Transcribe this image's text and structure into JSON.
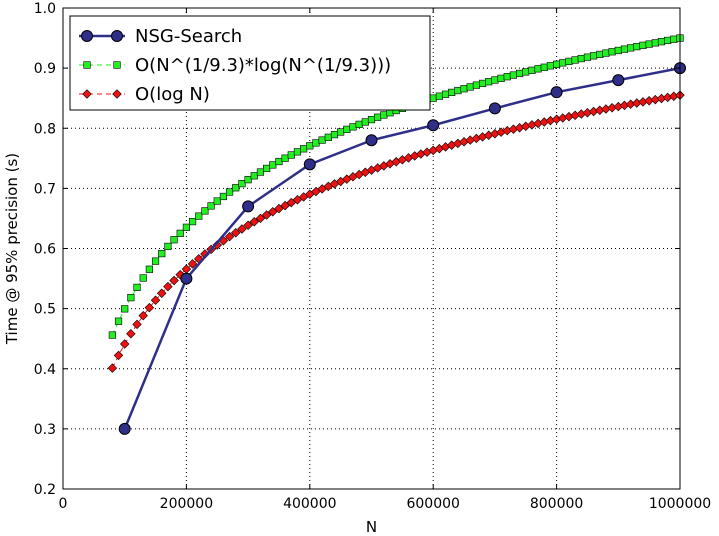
{
  "chart_data": {
    "type": "line",
    "title": "",
    "xlabel": "N",
    "ylabel": "Time @ 95% precision (s)",
    "xlim": [
      0,
      1000000
    ],
    "ylim": [
      0.2,
      1.0
    ],
    "xticks": [
      "0",
      "200000",
      "400000",
      "600000",
      "800000",
      "1000000"
    ],
    "yticks": [
      "0.2",
      "0.3",
      "0.4",
      "0.5",
      "0.6",
      "0.7",
      "0.8",
      "0.9",
      "1.0"
    ],
    "grid": true,
    "legend_position": "top-left",
    "series": [
      {
        "name": "NSG-Search",
        "color": "#2f2f8a",
        "marker": "circle",
        "linestyle": "solid",
        "x": [
          100000,
          200000,
          300000,
          400000,
          500000,
          600000,
          700000,
          800000,
          900000,
          1000000
        ],
        "y": [
          0.3,
          0.55,
          0.67,
          0.74,
          0.78,
          0.805,
          0.833,
          0.86,
          0.88,
          0.9
        ]
      },
      {
        "name": "O(N^(1/9.3)*log(N^(1/9.3)))",
        "color": "#22ee22",
        "marker": "square",
        "linestyle": "dashed",
        "model": "log",
        "x_start": 80000,
        "x_end": 1000000,
        "x_step": 10000,
        "y_start": 0.456,
        "y_end": 0.95
      },
      {
        "name": "O(log N)",
        "color": "#ee1111",
        "marker": "diamond",
        "linestyle": "dashed",
        "model": "log",
        "x_start": 80000,
        "x_end": 1000000,
        "x_step": 10000,
        "y_start": 0.401,
        "y_end": 0.855
      }
    ]
  }
}
